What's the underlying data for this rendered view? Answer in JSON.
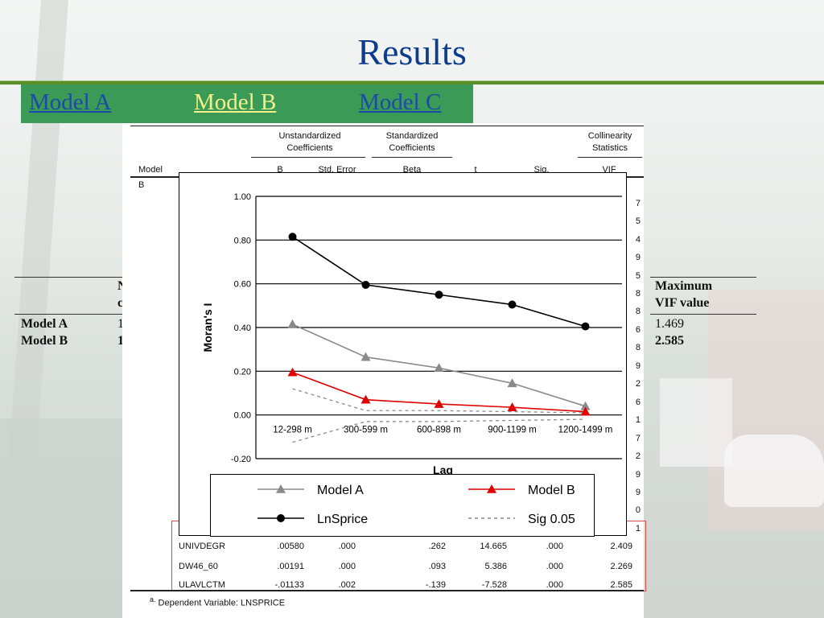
{
  "slide": {
    "title": "Results",
    "tabs": [
      {
        "label": "Model A"
      },
      {
        "label": "Model B"
      },
      {
        "label": "Model C"
      }
    ]
  },
  "table": {
    "group_headers": [
      "Unstandardized Coefficients",
      "Standardized Coefficients",
      "Collinearity Statistics"
    ],
    "col_headers": [
      "Model",
      "B",
      "Std. Error",
      "Beta",
      "t",
      "Sig.",
      "VIF"
    ],
    "model_label": "B",
    "stub_vif_digits": [
      "7",
      "5",
      "4",
      "9",
      "5",
      "8",
      "8",
      "6",
      "8",
      "9",
      "2",
      "6",
      "1",
      "7",
      "2",
      "9",
      "9",
      "0",
      "1"
    ],
    "rows": [
      {
        "var": "UNIVDEGR",
        "b": ".00580",
        "se": ".000",
        "beta": ".262",
        "t": "14.665",
        "sig": ".000",
        "vif": "2.409"
      },
      {
        "var": "DW46_60",
        "b": ".00191",
        "se": ".000",
        "beta": ".093",
        "t": "5.386",
        "sig": ".000",
        "vif": "2.269"
      },
      {
        "var": "ULAVLCTM",
        "b": "-.01133",
        "se": ".002",
        "beta": "-.139",
        "t": "-7.528",
        "sig": ".000",
        "vif": "2.585"
      }
    ],
    "footnote_marker": "a.",
    "footnote": "Dependent Variable: LNSPRICE"
  },
  "left_table": {
    "header_fragment": [
      "N",
      "c"
    ],
    "rows": [
      {
        "label": "Model A",
        "value": "1"
      },
      {
        "label": "Model B",
        "value": "1"
      }
    ]
  },
  "right_table": {
    "header": [
      "Maximum",
      "VIF value"
    ],
    "values": [
      "1.469",
      "2.585"
    ]
  },
  "chart_data": {
    "type": "line",
    "categories": [
      "12-298 m",
      "300-599 m",
      "600-898 m",
      "900-1199 m",
      "1200-1499 m"
    ],
    "ylabel": "Moran's I",
    "xlabel": "Lag",
    "ylim": [
      -0.2,
      1.0
    ],
    "yticks": [
      "1.00",
      "0.80",
      "0.60",
      "0.40",
      "0.20",
      "0.00",
      "-0.20"
    ],
    "ytick_values": [
      1.0,
      0.8,
      0.6,
      0.4,
      0.2,
      0.0,
      -0.2
    ],
    "grid": true,
    "legend": "bottom",
    "series": [
      {
        "name": "Model A",
        "values": [
          0.415,
          0.265,
          0.215,
          0.145,
          0.04
        ],
        "color": "#8a8a8a",
        "marker": "triangle"
      },
      {
        "name": "Model B",
        "values": [
          0.195,
          0.07,
          0.05,
          0.035,
          0.015
        ],
        "color": "#e00000",
        "marker": "triangle"
      },
      {
        "name": "LnSprice",
        "values": [
          0.815,
          0.595,
          0.55,
          0.505,
          0.405
        ],
        "color": "#000000",
        "marker": "circle"
      },
      {
        "name": "Sig 0.05",
        "values": [
          0.12,
          0.02,
          0.02,
          0.015,
          0.01
        ],
        "color": "#8a8a8a",
        "marker": "none",
        "dashed": true,
        "lower": [
          -0.125,
          -0.03,
          -0.03,
          -0.025,
          -0.02
        ]
      }
    ]
  }
}
